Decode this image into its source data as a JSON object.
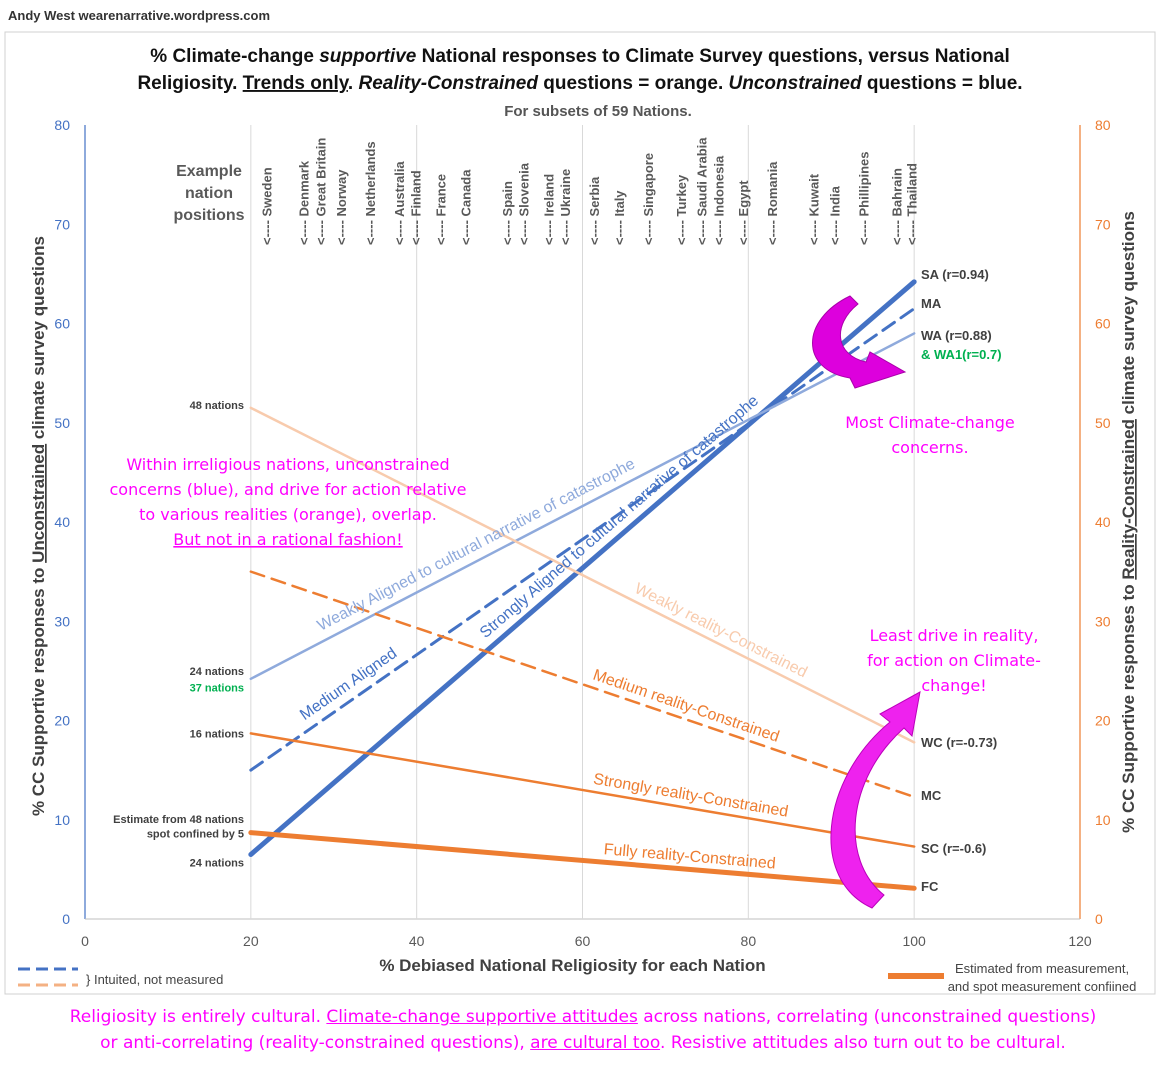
{
  "credit": "Andy West  wearenarrative.wordpress.com",
  "footer": {
    "line1_a": "Religiosity is entirely cultural. ",
    "line1_b": "Climate-change supportive attitudes",
    "line1_c": " across nations, correlating (unconstrained questions)",
    "line2_a": "or anti-correlating (reality-constrained questions), ",
    "line2_b": "are cultural too",
    "line2_c": ". Resistive attitudes also turn out to be cultural."
  },
  "colors": {
    "blue_strong": "#4472c4",
    "blue_weak": "#8faadc",
    "orange_strong": "#ed7d31",
    "orange_weak": "#f8cbad",
    "magenta": "#ff00ff",
    "green": "#00b050",
    "right_axis": "#ed7d31"
  },
  "chart_data": {
    "type": "line",
    "title_line1": "% Climate-change supportive National responses to Climate Survey questions, versus National",
    "title_line2": "Religiosity.  Trends only. Reality-Constrained questions = orange. Unconstrained questions = blue.",
    "subtitle": "For subsets of 59 Nations.",
    "xlabel": "% Debiased  National  Religiosity for each Nation",
    "ylabel_left": "% CC Supportive  responses to Unconstrained climate survey questions",
    "ylabel_right": "% CC Supportive  responses to Reality-Constrained  climate survey questions",
    "xlim": [
      0,
      120
    ],
    "ylim": [
      0,
      80
    ],
    "xticks": [
      0,
      20,
      40,
      60,
      80,
      100,
      120
    ],
    "yticks": [
      0,
      10,
      20,
      30,
      40,
      50,
      60,
      70,
      80
    ],
    "series": [
      {
        "name": "Strongly Aligned to cultural narrative of catastrophe",
        "end_label": "SA (r=0.94)",
        "x": [
          20,
          100
        ],
        "y": [
          6.5,
          64.2
        ],
        "axis": "left",
        "style": "solid",
        "width": 5,
        "color_key": "blue_strong"
      },
      {
        "name": "Medium Aligned",
        "end_label": "MA",
        "x": [
          20,
          100
        ],
        "y": [
          15,
          61.5
        ],
        "axis": "left",
        "style": "dashed",
        "width": 3,
        "color_key": "blue_strong"
      },
      {
        "name": "Weakly Aligned to cultural narrative of catastrophe",
        "end_label": "WA (r=0.88)",
        "x": [
          20,
          100
        ],
        "y": [
          24.2,
          59
        ],
        "axis": "left",
        "style": "solid",
        "width": 2.5,
        "color_key": "blue_weak"
      },
      {
        "name": "Weakly reality-Constrained",
        "end_label": "WC (r=-0.73)",
        "x": [
          20,
          100
        ],
        "y": [
          51.5,
          17.8
        ],
        "axis": "right",
        "style": "solid",
        "width": 2.5,
        "color_key": "orange_weak"
      },
      {
        "name": "Medium reality-Constrained",
        "end_label": "MC",
        "x": [
          20,
          100
        ],
        "y": [
          35,
          12.3
        ],
        "axis": "right",
        "style": "dashed",
        "width": 2.5,
        "color_key": "orange_strong"
      },
      {
        "name": "Strongly reality-Constrained",
        "end_label": "SC (r=-0.6)",
        "x": [
          20,
          100
        ],
        "y": [
          18.7,
          7.3
        ],
        "axis": "right",
        "style": "solid",
        "width": 2.5,
        "color_key": "orange_strong"
      },
      {
        "name": "Fully reality-Constrained",
        "end_label": "FC",
        "x": [
          20,
          100
        ],
        "y": [
          8.7,
          3.1
        ],
        "axis": "right",
        "style": "solid",
        "width": 5,
        "color_key": "orange_strong"
      }
    ],
    "end_label_extra": "& WA1(r=0.7)",
    "left_notes": [
      {
        "text": "48 nations",
        "y": 51.8,
        "color_key": null
      },
      {
        "text": "24 nations",
        "y": 25,
        "color_key": null
      },
      {
        "text": "37 nations",
        "y": 23.3,
        "color_key": "green"
      },
      {
        "text": "16 nations",
        "y": 18.7,
        "color_key": null
      },
      {
        "text": "Estimate from 48 nations",
        "y": 10.1,
        "color_key": null
      },
      {
        "text": "spot confined  by 5",
        "y": 8.6,
        "color_key": null
      },
      {
        "text": "24 nations",
        "y": 5.7,
        "color_key": null
      }
    ],
    "example_label": [
      "Example",
      "nation",
      "positions"
    ],
    "nations": [
      {
        "name": "Sweden",
        "x": 22
      },
      {
        "name": "Denmark",
        "x": 26.5
      },
      {
        "name": "Great Britain",
        "x": 28.5
      },
      {
        "name": "Norway",
        "x": 31
      },
      {
        "name": "Netherlands",
        "x": 34.5
      },
      {
        "name": "Australia",
        "x": 38
      },
      {
        "name": "Finland",
        "x": 40
      },
      {
        "name": "France",
        "x": 43
      },
      {
        "name": "Canada",
        "x": 46
      },
      {
        "name": "Spain",
        "x": 51
      },
      {
        "name": "Slovenia",
        "x": 53
      },
      {
        "name": "Ireland",
        "x": 56
      },
      {
        "name": "Ukraine",
        "x": 58
      },
      {
        "name": "Serbia",
        "x": 61.5
      },
      {
        "name": "Italy",
        "x": 64.5
      },
      {
        "name": "Singapore",
        "x": 68
      },
      {
        "name": "Turkey",
        "x": 72
      },
      {
        "name": "Saudi Arabia",
        "x": 74.5
      },
      {
        "name": "Indonesia",
        "x": 76.5
      },
      {
        "name": "Egypt",
        "x": 79.5
      },
      {
        "name": "Romania",
        "x": 83
      },
      {
        "name": "Kuwait",
        "x": 88
      },
      {
        "name": "India",
        "x": 90.5
      },
      {
        "name": "Phillipines",
        "x": 94
      },
      {
        "name": "Bahrain",
        "x": 98
      },
      {
        "name": "Thailand",
        "x": 99.8
      }
    ],
    "nation_marker": "<----",
    "annotations": {
      "irreligious": [
        "Within irreligious nations, unconstrained",
        "concerns (blue), and drive for action relative",
        "to various realities (orange), overlap.",
        "But not in a rational fashion!"
      ],
      "most": [
        "Most Climate-change",
        "concerns."
      ],
      "least": [
        "Least drive in reality,",
        "for action on Climate-",
        "change!"
      ]
    },
    "legend": {
      "dashed_note": "} Intuited, not measured",
      "thick_note_line1": "Estimated from measurement,",
      "thick_note_line2": "and spot measurement confiined"
    }
  }
}
